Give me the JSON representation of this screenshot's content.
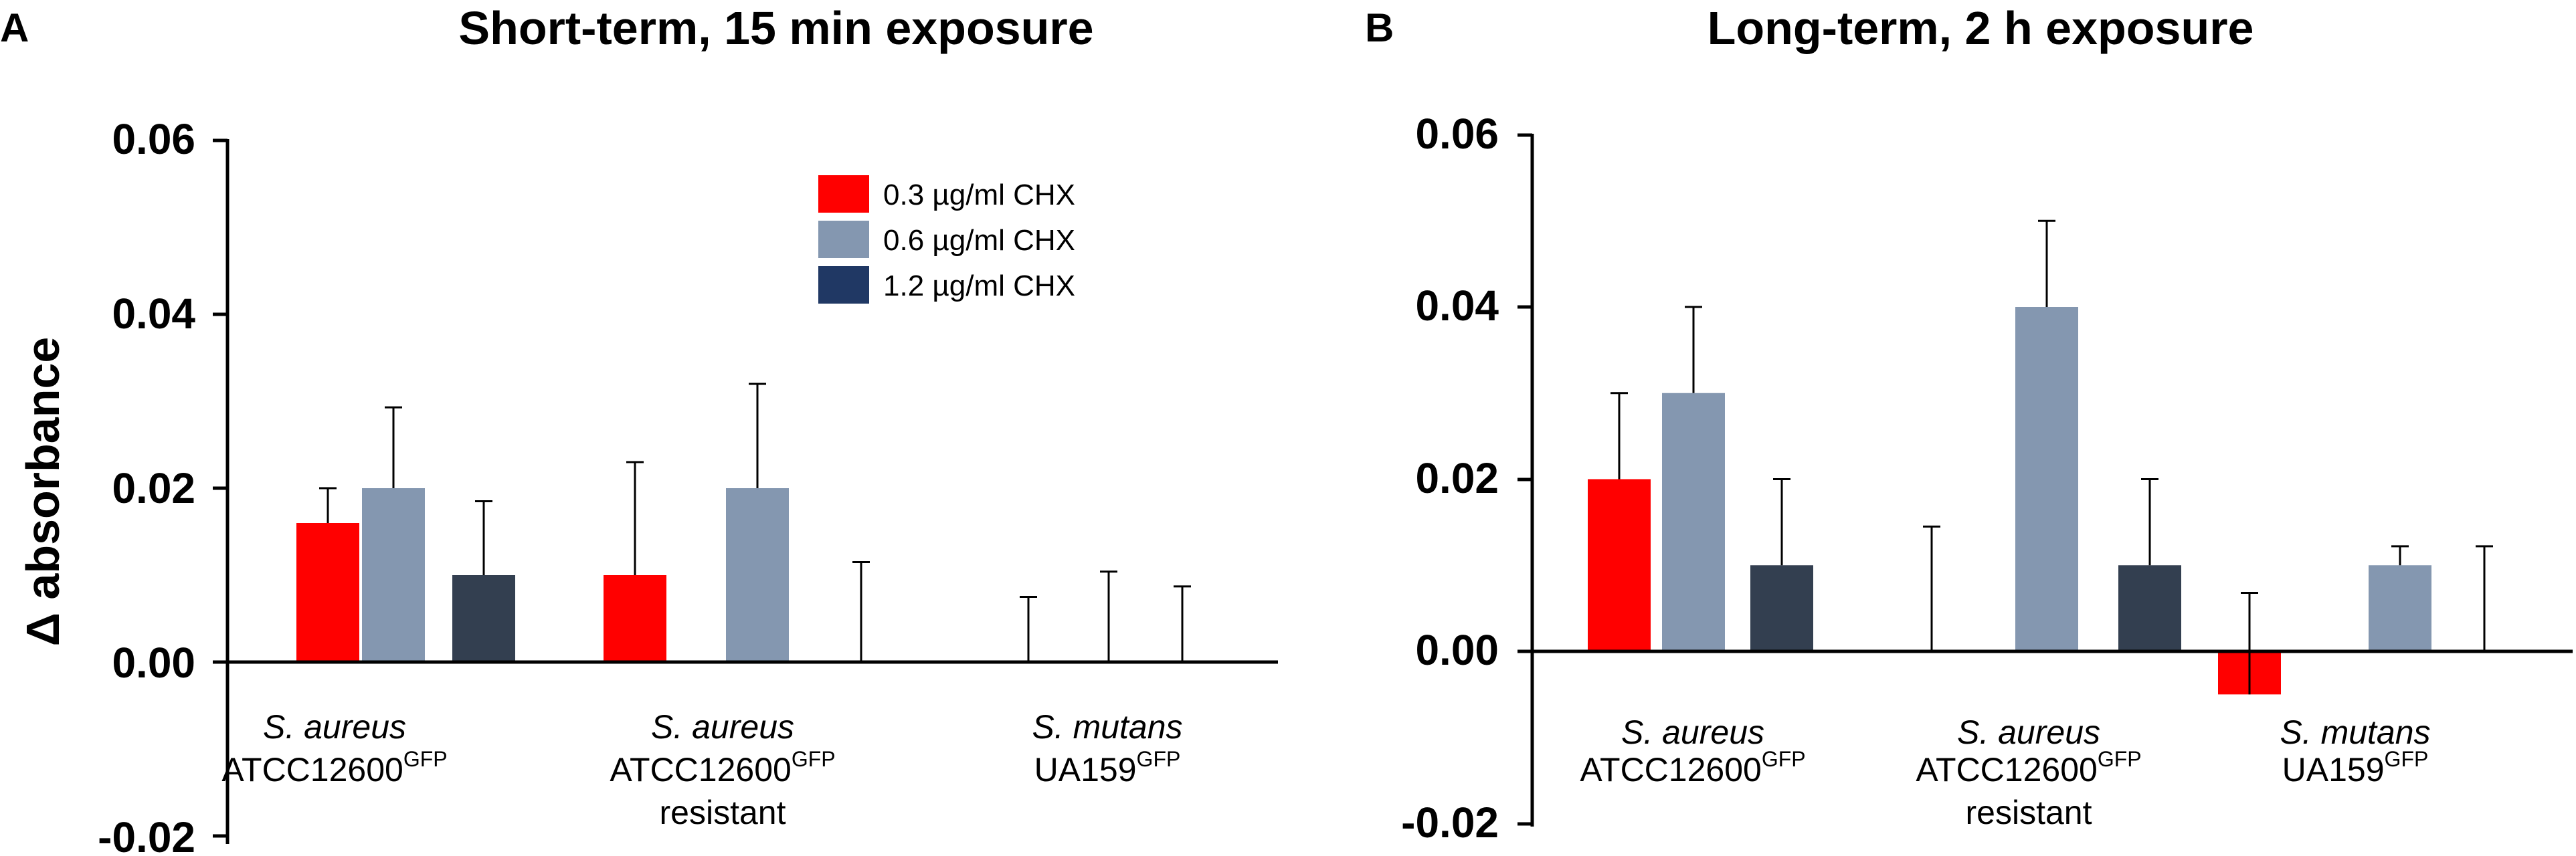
{
  "chart_data": [
    {
      "type": "bar",
      "panel_letter": "A",
      "title": "Short-term, 15 min exposure",
      "ylabel": "Δ absorbance",
      "ylim": [
        -0.02,
        0.06
      ],
      "yticks": [
        "0.06",
        "0.04",
        "0.02",
        "0.00",
        "-0.02"
      ],
      "categories": [
        {
          "species": "S. aureus",
          "strain": "ATCC12600",
          "sup": "GFP",
          "extra": ""
        },
        {
          "species": "S. aureus",
          "strain": "ATCC12600",
          "sup": "GFP",
          "extra": "resistant"
        },
        {
          "species": "S. mutans",
          "strain": "UA159",
          "sup": "GFP",
          "extra": ""
        }
      ],
      "series": [
        {
          "name": "0.3 µg/ml CHX",
          "values": [
            0.016,
            0.01,
            0.0
          ],
          "errors": [
            0.004,
            0.013,
            0.0075
          ]
        },
        {
          "name": "0.6 µg/ml CHX",
          "values": [
            0.02,
            0.02,
            0.0
          ],
          "errors": [
            0.0093,
            0.012,
            0.0104
          ]
        },
        {
          "name": "1.2 µg/ml CHX",
          "values": [
            0.01,
            0.0,
            0.0
          ],
          "errors": [
            0.0085,
            0.0115,
            0.0087
          ]
        }
      ],
      "legend_position": "top-right"
    },
    {
      "type": "bar",
      "panel_letter": "B",
      "title": "Long-term, 2 h exposure",
      "ylabel": "",
      "ylim": [
        -0.02,
        0.06
      ],
      "yticks": [
        "0.06",
        "0.04",
        "0.02",
        "0.00",
        "-0.02"
      ],
      "categories": [
        {
          "species": "S. aureus",
          "strain": "ATCC12600",
          "sup": "GFP",
          "extra": ""
        },
        {
          "species": "S. aureus",
          "strain": "ATCC12600",
          "sup": "GFP",
          "extra": "resistant"
        },
        {
          "species": "S. mutans",
          "strain": "UA159",
          "sup": "GFP",
          "extra": ""
        }
      ],
      "series": [
        {
          "name": "0.3 µg/ml CHX",
          "values": [
            0.02,
            0.0,
            -0.005
          ],
          "errors": [
            0.01,
            0.0145,
            0.0118
          ]
        },
        {
          "name": "0.6 µg/ml CHX",
          "values": [
            0.03,
            0.04,
            0.01
          ],
          "errors": [
            0.01,
            0.01,
            0.0022
          ]
        },
        {
          "name": "1.2 µg/ml CHX",
          "values": [
            0.01,
            0.01,
            0.0
          ],
          "errors": [
            0.01,
            0.01,
            0.0122
          ]
        }
      ],
      "legend_position": "none"
    }
  ],
  "colors": [
    "#ff0000",
    "#8497b0",
    "#333f50"
  ]
}
